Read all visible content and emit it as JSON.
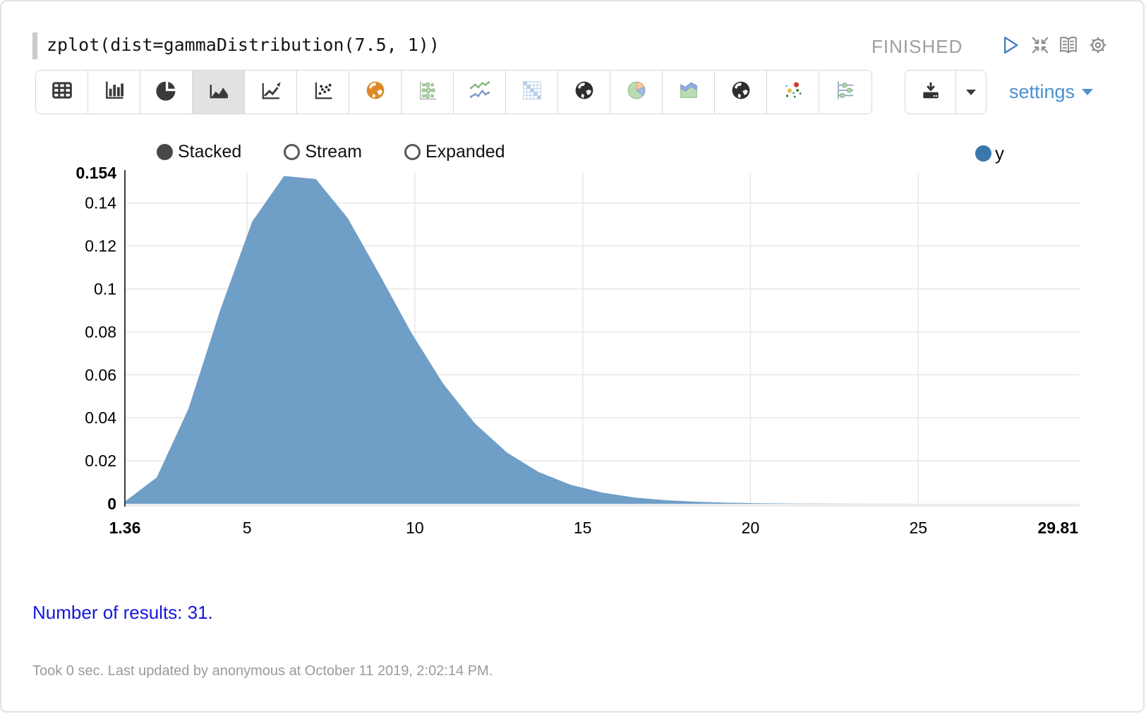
{
  "header": {
    "code": "zplot(dist=gammaDistribution(7.5, 1))",
    "status": "FINISHED",
    "icons": [
      "play-icon",
      "collapse-icon",
      "book-icon",
      "gear-icon"
    ]
  },
  "toolbar": {
    "buttons": [
      {
        "name": "table",
        "selected": false
      },
      {
        "name": "bar-chart",
        "selected": false
      },
      {
        "name": "pie-chart",
        "selected": false
      },
      {
        "name": "area-chart",
        "selected": true
      },
      {
        "name": "line-chart",
        "selected": false
      },
      {
        "name": "scatter-plot",
        "selected": false
      },
      {
        "name": "globe-orange",
        "selected": false
      },
      {
        "name": "bubble-chart",
        "selected": false
      },
      {
        "name": "multi-line-chart",
        "selected": false
      },
      {
        "name": "matrix-chart",
        "selected": false
      },
      {
        "name": "globe-dark",
        "selected": false
      },
      {
        "name": "pie-chart-pastel",
        "selected": false
      },
      {
        "name": "area-chart-pastel",
        "selected": false
      },
      {
        "name": "globe-dark-2",
        "selected": false
      },
      {
        "name": "scatter-colored",
        "selected": false
      },
      {
        "name": "range-sliders",
        "selected": false
      }
    ],
    "settings_label": "settings"
  },
  "controls": {
    "radios": [
      {
        "label": "Stacked",
        "selected": true
      },
      {
        "label": "Stream",
        "selected": false
      },
      {
        "label": "Expanded",
        "selected": false
      }
    ]
  },
  "legend": {
    "series": [
      {
        "label": "y",
        "color": "#3a77ad"
      }
    ],
    "position": "top-right"
  },
  "chart_data": {
    "type": "area",
    "title": "",
    "xlabel": "",
    "ylabel": "",
    "xlim": [
      1.36,
      29.81
    ],
    "ylim": [
      0,
      0.154
    ],
    "grid": true,
    "n_points": 31,
    "x": [
      1.36,
      2.308,
      3.257,
      4.205,
      5.153,
      6.102,
      7.05,
      7.998,
      8.947,
      9.895,
      10.843,
      11.792,
      12.74,
      13.688,
      14.637,
      15.585,
      16.533,
      17.482,
      18.43,
      19.378,
      20.327,
      21.275,
      22.223,
      23.172,
      24.12,
      25.068,
      26.017,
      26.965,
      27.913,
      28.862,
      29.81
    ],
    "series": [
      {
        "name": "y",
        "color": "#6f9ec7",
        "values": [
          0.00101,
          0.01221,
          0.04432,
          0.09041,
          0.13135,
          0.15256,
          0.15114,
          0.13298,
          0.10672,
          0.07958,
          0.05589,
          0.03733,
          0.02391,
          0.01477,
          0.00885,
          0.00515,
          0.00293,
          0.00163,
          0.00089,
          0.00048,
          0.00025,
          0.00013,
          7e-05,
          3e-05,
          2e-05,
          1e-05,
          0,
          0,
          0,
          0,
          0
        ]
      }
    ],
    "x_gridlines": [
      5,
      10,
      15,
      20,
      25
    ],
    "y_gridlines": [
      0.02,
      0.04,
      0.06,
      0.08,
      0.1,
      0.12,
      0.14
    ],
    "x_ticks": [
      {
        "label": "1.36",
        "value": 1.36,
        "bold": true
      },
      {
        "label": "5",
        "value": 5,
        "bold": false
      },
      {
        "label": "10",
        "value": 10,
        "bold": false
      },
      {
        "label": "15",
        "value": 15,
        "bold": false
      },
      {
        "label": "20",
        "value": 20,
        "bold": false
      },
      {
        "label": "25",
        "value": 25,
        "bold": false
      },
      {
        "label": "29.81",
        "value": 29.81,
        "bold": true
      }
    ],
    "y_ticks": [
      {
        "label": "0.154",
        "value": 0.154,
        "bold": true
      },
      {
        "label": "0.14",
        "value": 0.14,
        "bold": false
      },
      {
        "label": "0.12",
        "value": 0.12,
        "bold": false
      },
      {
        "label": "0.1",
        "value": 0.1,
        "bold": false
      },
      {
        "label": "0.08",
        "value": 0.08,
        "bold": false
      },
      {
        "label": "0.06",
        "value": 0.06,
        "bold": false
      },
      {
        "label": "0.04",
        "value": 0.04,
        "bold": false
      },
      {
        "label": "0.02",
        "value": 0.02,
        "bold": false
      },
      {
        "label": "0",
        "value": 0,
        "bold": true
      }
    ]
  },
  "results": {
    "text": "Number of results: 31."
  },
  "footer": {
    "text": "Took 0 sec. Last updated by anonymous at October 11 2019, 2:02:14 PM."
  },
  "colors": {
    "accent_blue": "#4a90d2",
    "series_fill": "#6f9ec7",
    "series_legend": "#3a77ad",
    "status_gray": "#9e9e9e",
    "results_blue": "#1616e0",
    "selected_button_bg": "#e2e2e2"
  }
}
